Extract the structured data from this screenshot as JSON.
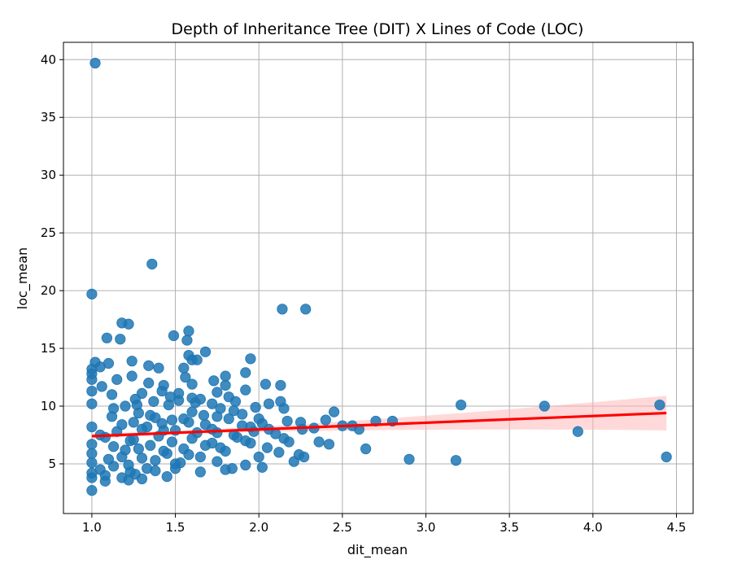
{
  "chart_data": {
    "type": "scatter",
    "title": "Depth of Inheritance Tree (DIT) X Lines of Code (LOC)",
    "xlabel": "dit_mean",
    "ylabel": "loc_mean",
    "xlim": [
      0.83,
      4.6
    ],
    "ylim": [
      0.7,
      41.5
    ],
    "xticks": [
      1.0,
      1.5,
      2.0,
      2.5,
      3.0,
      3.5,
      4.0,
      4.5
    ],
    "xtick_labels": [
      "1.0",
      "1.5",
      "2.0",
      "2.5",
      "3.0",
      "3.5",
      "4.0",
      "4.5"
    ],
    "yticks": [
      5,
      10,
      15,
      20,
      25,
      30,
      35,
      40
    ],
    "ytick_labels": [
      "5",
      "10",
      "15",
      "20",
      "25",
      "30",
      "35",
      "40"
    ],
    "grid": true,
    "colors": {
      "points": "#1f77b4",
      "regression_line": "#ff0000",
      "confidence_band": "#ffb3b3"
    },
    "regression": {
      "x": [
        1.0,
        4.44
      ],
      "y": [
        7.4,
        9.4
      ],
      "ci_lower_at_end": 8.0,
      "ci_upper_at_end": 11.0
    },
    "series": [
      {
        "points": [
          [
            1.02,
            39.7
          ],
          [
            1.0,
            19.7
          ],
          [
            1.36,
            22.3
          ],
          [
            2.14,
            18.4
          ],
          [
            2.28,
            18.4
          ],
          [
            1.18,
            17.2
          ],
          [
            1.22,
            17.1
          ],
          [
            1.58,
            16.5
          ],
          [
            1.49,
            16.1
          ],
          [
            1.57,
            15.7
          ],
          [
            1.09,
            15.9
          ],
          [
            1.17,
            15.8
          ],
          [
            1.68,
            14.7
          ],
          [
            1.58,
            14.4
          ],
          [
            1.6,
            14.0
          ],
          [
            1.95,
            14.1
          ],
          [
            1.63,
            14.0
          ],
          [
            1.24,
            13.9
          ],
          [
            1.02,
            13.8
          ],
          [
            1.1,
            13.7
          ],
          [
            1.34,
            13.5
          ],
          [
            1.4,
            13.3
          ],
          [
            1.55,
            13.3
          ],
          [
            1.0,
            13.2
          ],
          [
            1.05,
            13.4
          ],
          [
            1.92,
            12.9
          ],
          [
            1.0,
            12.8
          ],
          [
            1.24,
            12.6
          ],
          [
            1.56,
            12.5
          ],
          [
            1.8,
            12.6
          ],
          [
            1.0,
            12.3
          ],
          [
            1.15,
            12.3
          ],
          [
            1.34,
            12.0
          ],
          [
            1.6,
            11.9
          ],
          [
            1.73,
            12.2
          ],
          [
            2.04,
            11.9
          ],
          [
            2.13,
            11.8
          ],
          [
            1.43,
            11.8
          ],
          [
            1.8,
            11.8
          ],
          [
            1.06,
            11.7
          ],
          [
            1.92,
            11.4
          ],
          [
            1.0,
            11.3
          ],
          [
            1.75,
            11.2
          ],
          [
            1.3,
            11.1
          ],
          [
            1.52,
            11.1
          ],
          [
            1.47,
            10.8
          ],
          [
            1.6,
            10.7
          ],
          [
            1.82,
            10.8
          ],
          [
            1.65,
            10.6
          ],
          [
            1.26,
            10.6
          ],
          [
            1.86,
            10.4
          ],
          [
            2.13,
            10.4
          ],
          [
            2.06,
            10.2
          ],
          [
            1.0,
            10.2
          ],
          [
            1.2,
            10.0
          ],
          [
            1.72,
            10.2
          ],
          [
            1.46,
            10.1
          ],
          [
            3.21,
            10.1
          ],
          [
            3.71,
            10.0
          ],
          [
            4.4,
            10.1
          ],
          [
            1.98,
            9.9
          ],
          [
            2.15,
            9.8
          ],
          [
            1.85,
            9.6
          ],
          [
            1.6,
            9.5
          ],
          [
            2.45,
            9.5
          ],
          [
            1.9,
            9.3
          ],
          [
            1.35,
            9.2
          ],
          [
            1.12,
            9.1
          ],
          [
            1.75,
            9.1
          ],
          [
            1.55,
            8.9
          ],
          [
            2.0,
            8.9
          ],
          [
            2.4,
            8.8
          ],
          [
            2.7,
            8.7
          ],
          [
            2.8,
            8.7
          ],
          [
            1.25,
            8.6
          ],
          [
            2.17,
            8.7
          ],
          [
            2.25,
            8.6
          ],
          [
            1.42,
            8.5
          ],
          [
            1.68,
            8.4
          ],
          [
            1.9,
            8.3
          ],
          [
            2.5,
            8.3
          ],
          [
            2.56,
            8.3
          ],
          [
            2.6,
            8.0
          ],
          [
            2.33,
            8.1
          ],
          [
            2.26,
            8.0
          ],
          [
            2.06,
            8.0
          ],
          [
            1.95,
            8.2
          ],
          [
            1.0,
            8.2
          ],
          [
            1.3,
            8.0
          ],
          [
            1.5,
            7.9
          ],
          [
            1.15,
            7.8
          ],
          [
            1.75,
            7.7
          ],
          [
            3.91,
            7.8
          ],
          [
            2.1,
            7.6
          ],
          [
            1.85,
            7.5
          ],
          [
            1.05,
            7.5
          ],
          [
            1.4,
            7.4
          ],
          [
            2.15,
            7.2
          ],
          [
            1.6,
            7.2
          ],
          [
            1.25,
            7.1
          ],
          [
            2.18,
            6.9
          ],
          [
            2.36,
            6.9
          ],
          [
            2.42,
            6.7
          ],
          [
            1.95,
            6.8
          ],
          [
            1.72,
            6.8
          ],
          [
            1.0,
            6.7
          ],
          [
            1.35,
            6.6
          ],
          [
            2.05,
            6.4
          ],
          [
            2.64,
            6.3
          ],
          [
            1.55,
            6.3
          ],
          [
            1.2,
            6.2
          ],
          [
            1.8,
            6.1
          ],
          [
            2.12,
            6.0
          ],
          [
            1.0,
            5.9
          ],
          [
            1.45,
            5.9
          ],
          [
            2.24,
            5.8
          ],
          [
            2.0,
            5.6
          ],
          [
            2.27,
            5.6
          ],
          [
            1.65,
            5.6
          ],
          [
            1.3,
            5.5
          ],
          [
            2.9,
            5.4
          ],
          [
            1.1,
            5.4
          ],
          [
            3.18,
            5.3
          ],
          [
            2.21,
            5.2
          ],
          [
            4.44,
            5.6
          ],
          [
            1.75,
            5.2
          ],
          [
            1.0,
            5.1
          ],
          [
            1.5,
            5.0
          ],
          [
            1.22,
            4.9
          ],
          [
            1.92,
            4.9
          ],
          [
            2.02,
            4.7
          ],
          [
            1.5,
            4.6
          ],
          [
            1.84,
            4.6
          ],
          [
            1.8,
            4.5
          ],
          [
            1.05,
            4.5
          ],
          [
            1.38,
            4.4
          ],
          [
            1.65,
            4.3
          ],
          [
            1.0,
            4.2
          ],
          [
            1.26,
            4.1
          ],
          [
            1.45,
            3.9
          ],
          [
            1.0,
            3.8
          ],
          [
            1.18,
            3.8
          ],
          [
            1.3,
            3.7
          ],
          [
            1.08,
            3.5
          ],
          [
            1.22,
            3.6
          ],
          [
            1.0,
            2.7
          ],
          [
            1.13,
            9.8
          ],
          [
            1.28,
            9.4
          ],
          [
            1.38,
            9.0
          ],
          [
            1.48,
            8.8
          ],
          [
            1.58,
            8.6
          ],
          [
            1.18,
            8.4
          ],
          [
            1.33,
            8.2
          ],
          [
            1.43,
            7.9
          ],
          [
            1.63,
            7.7
          ],
          [
            1.08,
            7.3
          ],
          [
            1.23,
            7.0
          ],
          [
            1.48,
            6.9
          ],
          [
            1.68,
            6.6
          ],
          [
            1.13,
            6.5
          ],
          [
            1.28,
            6.3
          ],
          [
            1.43,
            6.1
          ],
          [
            1.58,
            5.8
          ],
          [
            1.18,
            5.6
          ],
          [
            1.38,
            5.3
          ],
          [
            1.53,
            5.1
          ],
          [
            1.13,
            4.8
          ],
          [
            1.33,
            4.6
          ],
          [
            1.23,
            4.3
          ],
          [
            1.08,
            4.0
          ],
          [
            1.62,
            10.3
          ],
          [
            1.52,
            10.5
          ],
          [
            1.37,
            10.4
          ],
          [
            1.27,
            10.1
          ],
          [
            1.77,
            9.8
          ],
          [
            1.67,
            9.2
          ],
          [
            1.82,
            8.9
          ],
          [
            1.72,
            8.0
          ],
          [
            1.87,
            7.3
          ],
          [
            1.77,
            6.4
          ],
          [
            1.92,
            7.0
          ],
          [
            1.97,
            7.8
          ],
          [
            2.02,
            8.5
          ],
          [
            1.12,
            11.0
          ],
          [
            1.42,
            11.3
          ]
        ]
      }
    ]
  }
}
